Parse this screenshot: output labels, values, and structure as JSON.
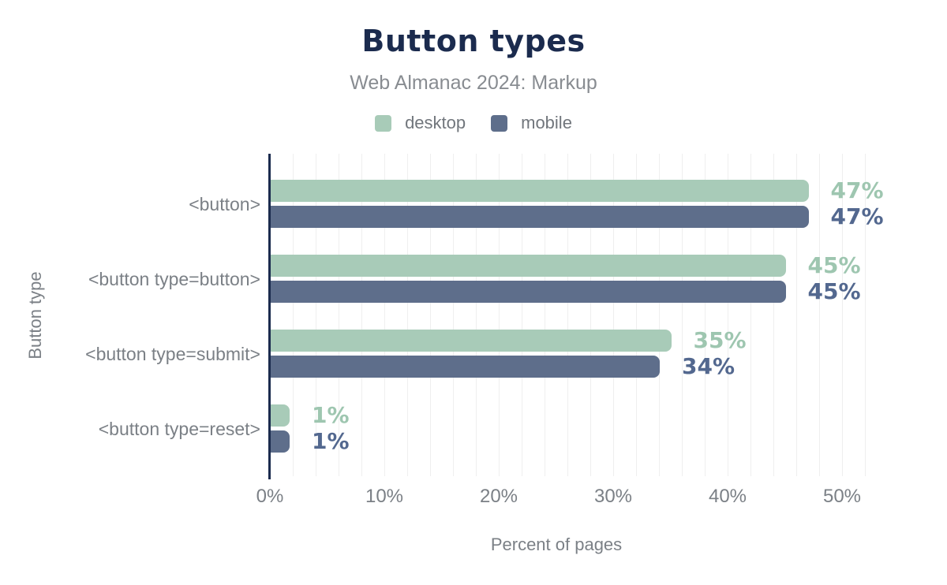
{
  "chart_data": {
    "type": "bar",
    "orientation": "horizontal",
    "title": "Button types",
    "subtitle": "Web Almanac 2024: Markup",
    "categories": [
      "<button>",
      "<button type=button>",
      "<button type=submit>",
      "<button type=reset>"
    ],
    "series": [
      {
        "name": "desktop",
        "color": "#a8cbb8",
        "label_color": "#9ec6b0",
        "values": [
          47,
          45,
          35,
          1
        ],
        "value_labels": [
          "47%",
          "45%",
          "35%",
          "1%"
        ]
      },
      {
        "name": "mobile",
        "color": "#5e6e8b",
        "label_color": "#53688f",
        "values": [
          47,
          45,
          34,
          1
        ],
        "value_labels": [
          "47%",
          "45%",
          "34%",
          "1%"
        ]
      }
    ],
    "xlabel": "Percent of pages",
    "ylabel": "Button type",
    "x_ticks": [
      {
        "pct": 0,
        "label": "0%"
      },
      {
        "pct": 10,
        "label": "10%"
      },
      {
        "pct": 20,
        "label": "20%"
      },
      {
        "pct": 30,
        "label": "30%"
      },
      {
        "pct": 40,
        "label": "40%"
      },
      {
        "pct": 50,
        "label": "50%"
      }
    ],
    "xlim": [
      0,
      52
    ],
    "grid": {
      "show": true,
      "minor_step_pct": 2
    },
    "legend_position": "top"
  },
  "colors": {
    "background": "#ffffff",
    "title_text": "#1b2b4e",
    "subtitle_text": "#888c91",
    "legend_text": "#71767c",
    "muted_text": "#7b8086",
    "gridline": "#efefef",
    "axis": "#1b2b4e",
    "desktop": "#a8cbb8",
    "mobile": "#5e6e8b"
  }
}
